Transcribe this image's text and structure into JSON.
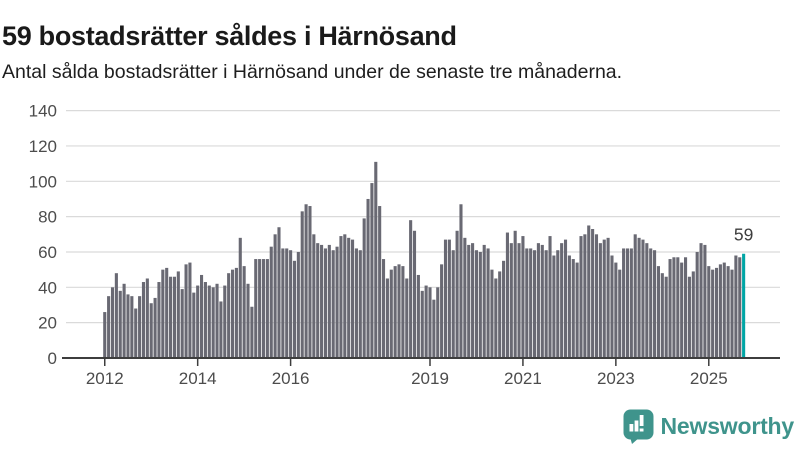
{
  "header": {
    "title": "59 bostadsrätter såldes i Härnösand",
    "subtitle": "Antal sålda bostadsrätter i Härnösand under de senaste tre månaderna."
  },
  "chart_data": {
    "type": "bar",
    "title": "59 bostadsrätter såldes i Härnösand",
    "subtitle": "Antal sålda bostadsrätter i Härnösand under de senaste tre månaderna.",
    "frequency": "monthly",
    "x_start": "2012-01",
    "x_end": "2025-10",
    "values": [
      26,
      35,
      40,
      48,
      38,
      42,
      36,
      35,
      28,
      35,
      43,
      45,
      31,
      34,
      43,
      50,
      51,
      46,
      46,
      49,
      39,
      53,
      54,
      37,
      41,
      47,
      43,
      41,
      40,
      42,
      32,
      41,
      48,
      50,
      51,
      68,
      52,
      42,
      29,
      56,
      56,
      56,
      56,
      63,
      70,
      74,
      62,
      62,
      61,
      55,
      60,
      83,
      87,
      86,
      70,
      65,
      64,
      62,
      64,
      61,
      63,
      69,
      70,
      68,
      67,
      62,
      61,
      79,
      90,
      99,
      111,
      86,
      56,
      45,
      50,
      52,
      53,
      52,
      45,
      78,
      72,
      47,
      38,
      41,
      40,
      33,
      40,
      53,
      67,
      67,
      61,
      72,
      87,
      68,
      64,
      65,
      61,
      60,
      64,
      62,
      50,
      45,
      49,
      55,
      71,
      65,
      72,
      65,
      69,
      62,
      62,
      61,
      65,
      64,
      61,
      69,
      58,
      61,
      65,
      67,
      58,
      56,
      54,
      69,
      70,
      75,
      73,
      70,
      65,
      67,
      68,
      58,
      54,
      50,
      62,
      62,
      62,
      70,
      68,
      67,
      65,
      62,
      61,
      52,
      48,
      46,
      56,
      57,
      57,
      54,
      57,
      46,
      49,
      60,
      65,
      64,
      52,
      50,
      51,
      53,
      54,
      52,
      50,
      58,
      57,
      59
    ],
    "highlight": {
      "index": 165,
      "value": 59,
      "label": "59"
    },
    "ylim": [
      0,
      140
    ],
    "y_ticks": [
      0,
      20,
      40,
      60,
      80,
      100,
      120,
      140
    ],
    "x_tick_years": [
      {
        "label": "2012",
        "month_index": 0
      },
      {
        "label": "2014",
        "month_index": 24
      },
      {
        "label": "2016",
        "month_index": 48
      },
      {
        "label": "2019",
        "month_index": 84
      },
      {
        "label": "2021",
        "month_index": 108
      },
      {
        "label": "2023",
        "month_index": 132
      },
      {
        "label": "2025",
        "month_index": 156
      }
    ],
    "grid": true,
    "legend": "none",
    "colors": {
      "bar": "#696973",
      "highlight": "#00a5a5",
      "grid": "#dadada",
      "axis": "#3d3d3d",
      "tick_label": "#4c4c4c",
      "value_label": "#3d3d3d"
    }
  },
  "footer": {
    "brand": "Newsworthy",
    "brand_color": "#3f948c",
    "logo_icon": "newsworthy-bubble-barchart-icon"
  }
}
